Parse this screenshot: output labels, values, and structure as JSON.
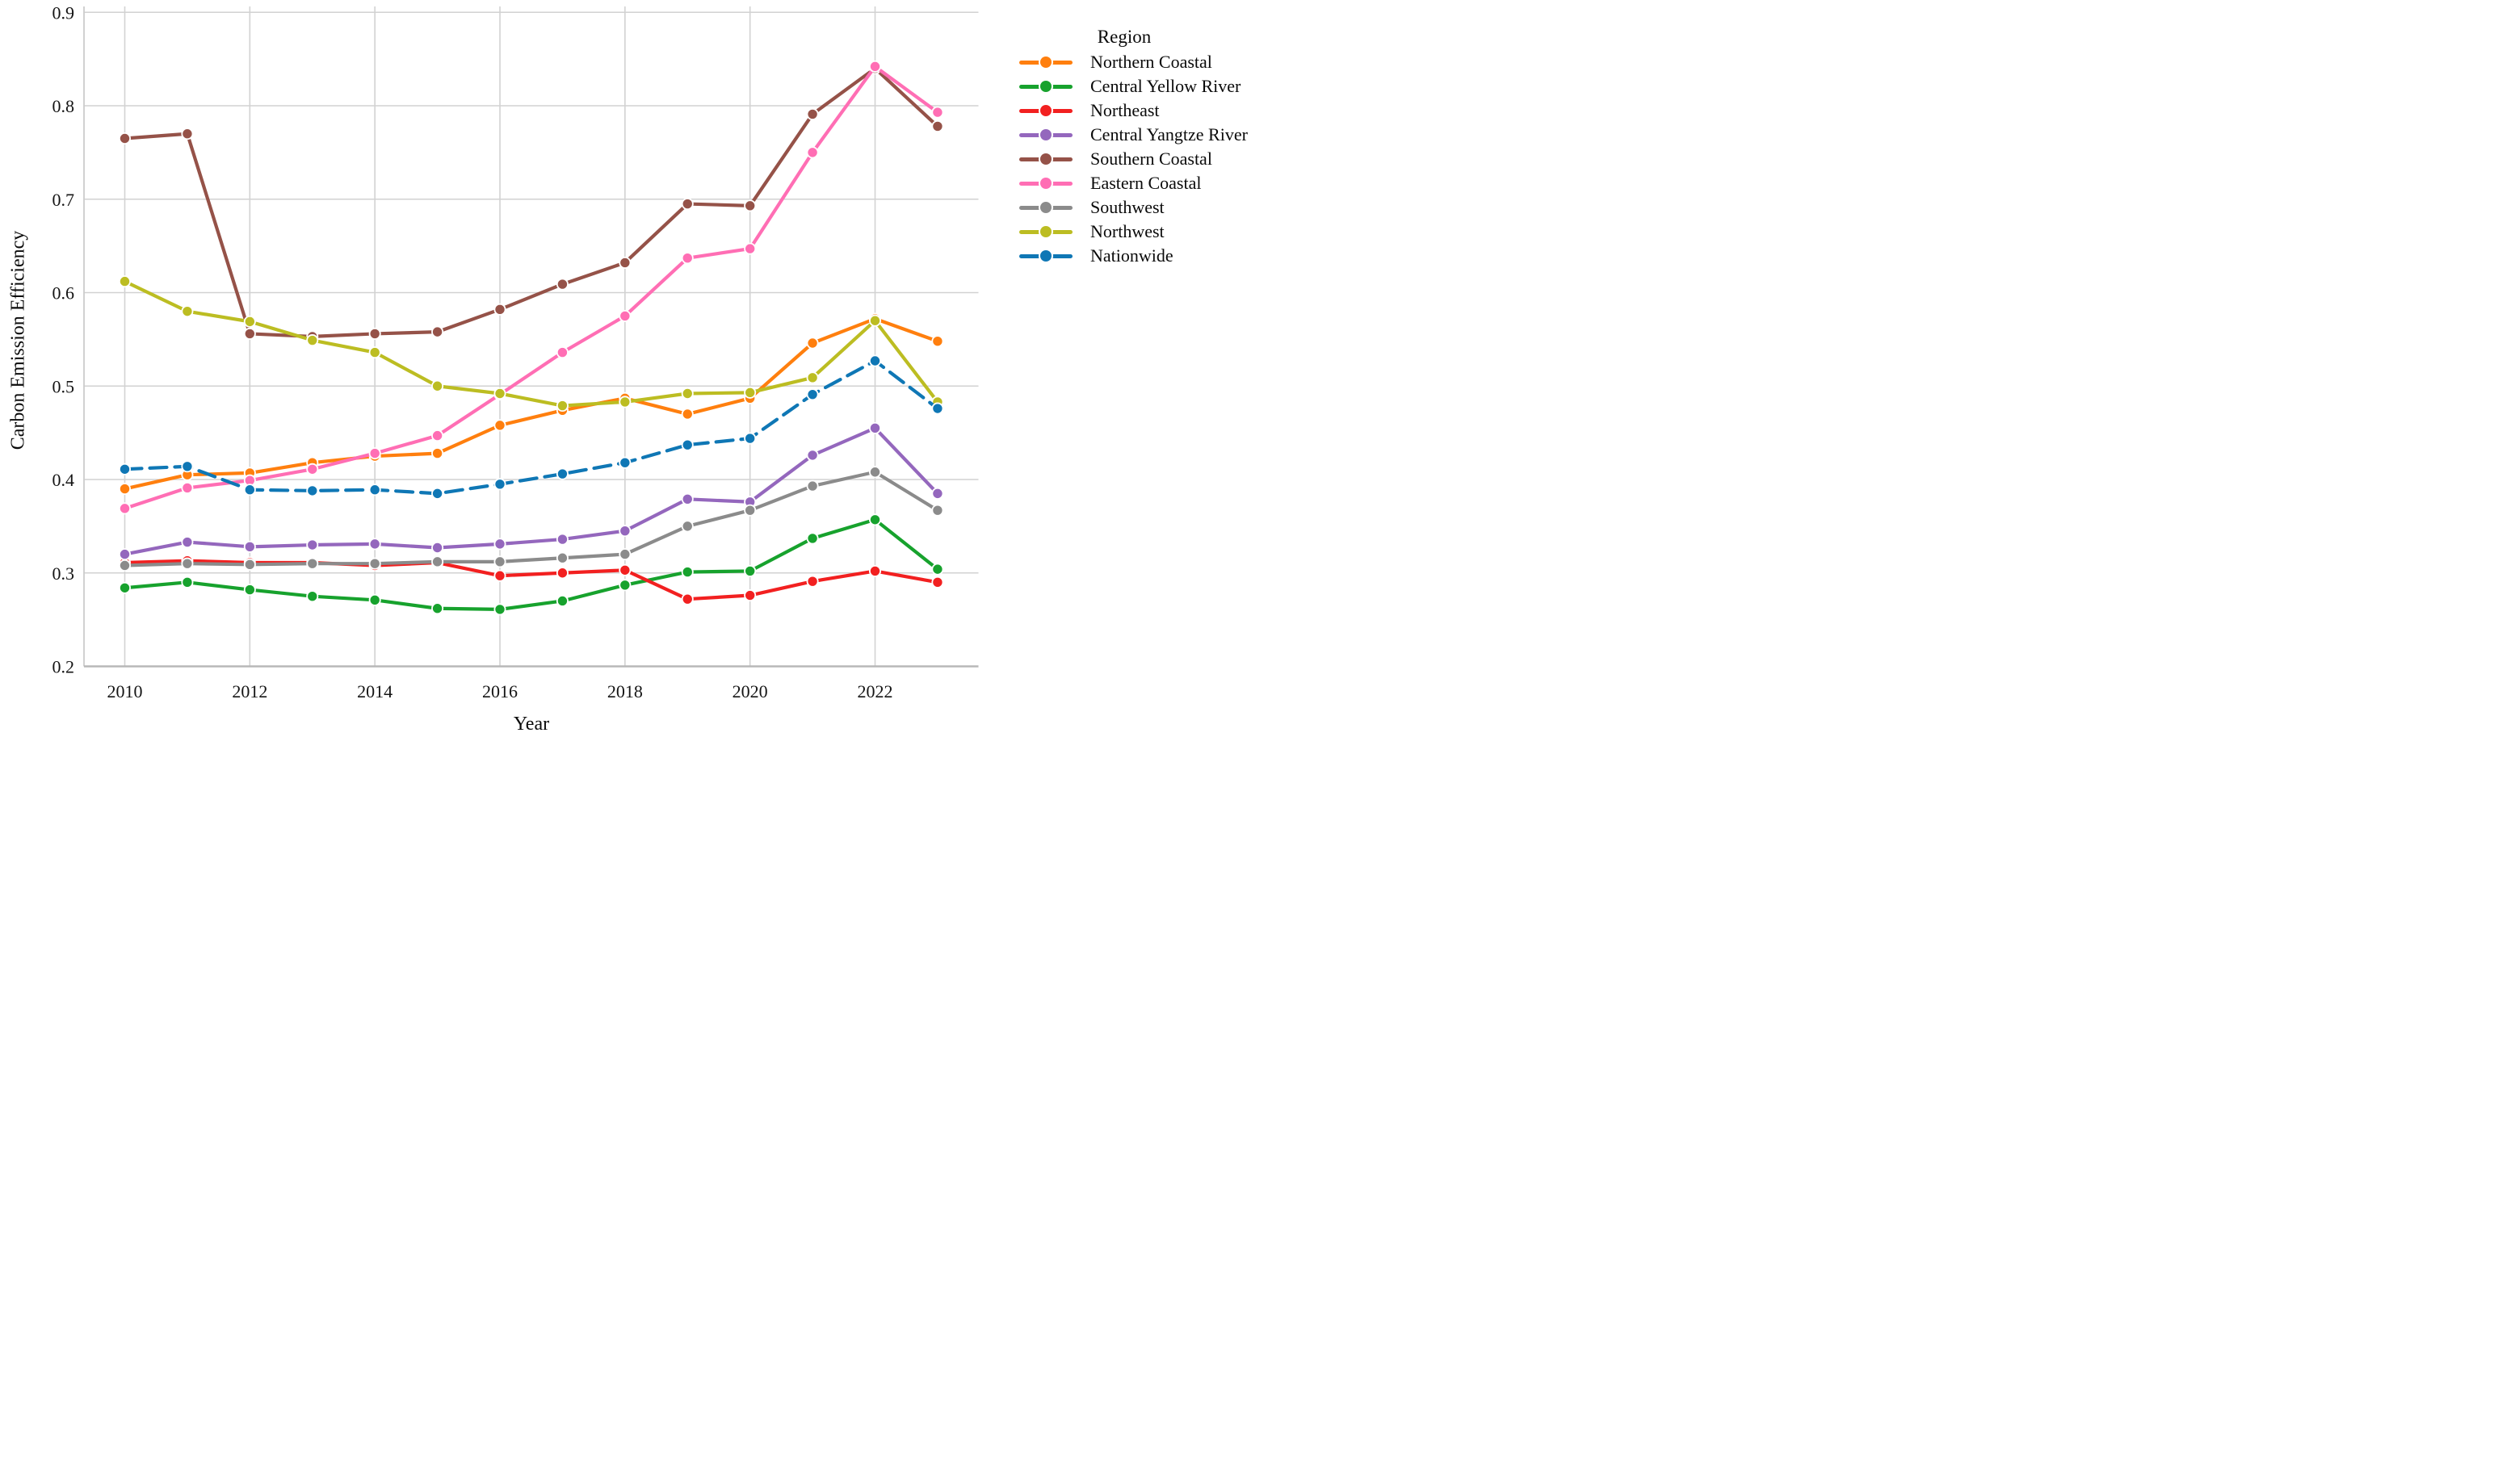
{
  "legend": {
    "title": "Region",
    "items": [
      {
        "label": "Northern Coastal",
        "color": "#ff7f0e",
        "dashed": false
      },
      {
        "label": "Central Yellow River",
        "color": "#17a22d",
        "dashed": false
      },
      {
        "label": "Northeast",
        "color": "#f22020",
        "dashed": false
      },
      {
        "label": "Central Yangtze River",
        "color": "#9467bd",
        "dashed": false
      },
      {
        "label": "Southern Coastal",
        "color": "#955248",
        "dashed": false
      },
      {
        "label": "Eastern Coastal",
        "color": "#ff6eb4",
        "dashed": false
      },
      {
        "label": "Southwest",
        "color": "#8b8b8b",
        "dashed": false
      },
      {
        "label": "Northwest",
        "color": "#bcbd22",
        "dashed": false
      },
      {
        "label": "Nationwide",
        "color": "#0f77b5",
        "dashed": true
      }
    ]
  },
  "chart_data": {
    "type": "line",
    "title": "",
    "xlabel": "Year",
    "ylabel": "Carbon Emission Efficiency",
    "x": [
      2010,
      2011,
      2012,
      2013,
      2014,
      2015,
      2016,
      2017,
      2018,
      2019,
      2020,
      2021,
      2022,
      2023
    ],
    "x_ticks": [
      2010,
      2012,
      2014,
      2016,
      2018,
      2020,
      2022
    ],
    "y_ticks": [
      0.2,
      0.3,
      0.4,
      0.5,
      0.6,
      0.7,
      0.8,
      0.9
    ],
    "ylim": [
      0.2,
      0.906
    ],
    "xlim": [
      2009.35,
      2023.65
    ],
    "grid": true,
    "legend_position": "right",
    "marker": "circle",
    "series": [
      {
        "name": "Northern Coastal",
        "color": "#ff7f0e",
        "dashed": false,
        "values": [
          0.39,
          0.405,
          0.407,
          0.418,
          0.425,
          0.428,
          0.458,
          0.474,
          0.487,
          0.47,
          0.487,
          0.546,
          0.572,
          0.548
        ]
      },
      {
        "name": "Central Yellow River",
        "color": "#17a22d",
        "dashed": false,
        "values": [
          0.284,
          0.29,
          0.282,
          0.275,
          0.271,
          0.262,
          0.261,
          0.27,
          0.287,
          0.301,
          0.302,
          0.337,
          0.357,
          0.304
        ]
      },
      {
        "name": "Northeast",
        "color": "#f22020",
        "dashed": false,
        "values": [
          0.311,
          0.313,
          0.311,
          0.311,
          0.308,
          0.311,
          0.297,
          0.3,
          0.303,
          0.272,
          0.276,
          0.291,
          0.302,
          0.29
        ]
      },
      {
        "name": "Central Yangtze River",
        "color": "#9467bd",
        "dashed": false,
        "values": [
          0.32,
          0.333,
          0.328,
          0.33,
          0.331,
          0.327,
          0.331,
          0.336,
          0.345,
          0.379,
          0.376,
          0.426,
          0.455,
          0.385
        ]
      },
      {
        "name": "Southern Coastal",
        "color": "#955248",
        "dashed": false,
        "values": [
          0.765,
          0.77,
          0.556,
          0.553,
          0.556,
          0.558,
          0.582,
          0.609,
          0.632,
          0.695,
          0.693,
          0.791,
          0.84,
          0.778
        ]
      },
      {
        "name": "Eastern Coastal",
        "color": "#ff6eb4",
        "dashed": false,
        "values": [
          0.369,
          0.391,
          0.399,
          0.411,
          0.428,
          0.447,
          0.491,
          0.536,
          0.575,
          0.637,
          0.647,
          0.75,
          0.842,
          0.793
        ]
      },
      {
        "name": "Southwest",
        "color": "#8b8b8b",
        "dashed": false,
        "values": [
          0.308,
          0.31,
          0.309,
          0.31,
          0.31,
          0.312,
          0.312,
          0.316,
          0.32,
          0.35,
          0.367,
          0.393,
          0.408,
          0.367
        ]
      },
      {
        "name": "Northwest",
        "color": "#bcbd22",
        "dashed": false,
        "values": [
          0.612,
          0.58,
          0.569,
          0.549,
          0.536,
          0.5,
          0.492,
          0.479,
          0.483,
          0.492,
          0.493,
          0.509,
          0.57,
          0.483
        ]
      },
      {
        "name": "Nationwide",
        "color": "#0f77b5",
        "dashed": true,
        "values": [
          0.411,
          0.414,
          0.389,
          0.388,
          0.389,
          0.385,
          0.395,
          0.406,
          0.418,
          0.437,
          0.444,
          0.491,
          0.527,
          0.476
        ]
      }
    ],
    "style": {
      "grid_color": "#d2d2d2",
      "bottom_spine_color": "#b8b8b8",
      "left_spine_color": "#cccccc",
      "tick_color": "#141414",
      "line_width": 4.2,
      "marker_radius": 6.6,
      "dash_pattern": "21 10"
    }
  }
}
